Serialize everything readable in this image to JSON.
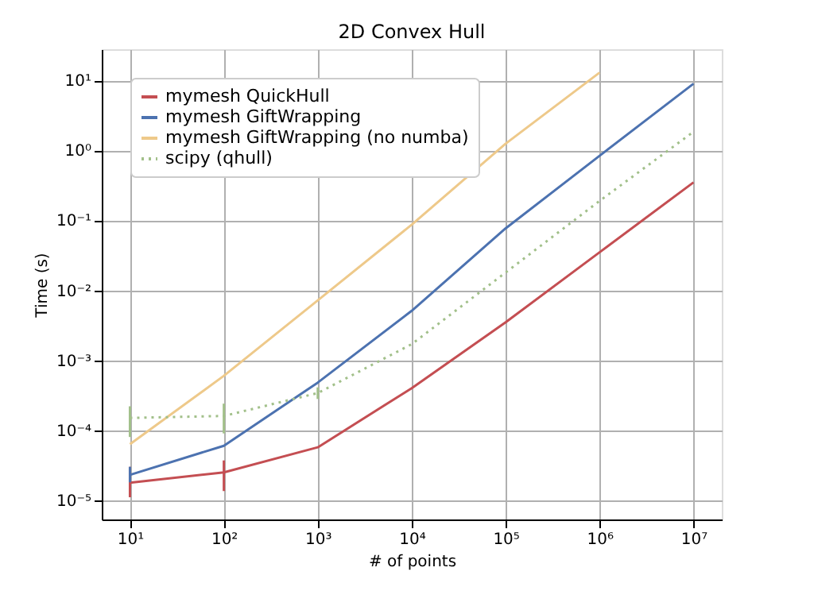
{
  "chart_data": {
    "type": "line",
    "title": "2D Convex Hull",
    "xlabel": "# of points",
    "ylabel": "Time (s)",
    "log": "xy",
    "grid": true,
    "legend": "top left",
    "x": [
      10,
      100,
      1000,
      10000,
      100000,
      1000000,
      10000000
    ],
    "xlim": [
      5.01,
      20000000
    ],
    "xticks": [
      {
        "value": 10,
        "label": "10¹"
      },
      {
        "value": 100,
        "label": "10²"
      },
      {
        "value": 1000,
        "label": "10³"
      },
      {
        "value": 10000,
        "label": "10⁴"
      },
      {
        "value": 100000,
        "label": "10⁵"
      },
      {
        "value": 1000000,
        "label": "10⁶"
      },
      {
        "value": 10000000,
        "label": "10⁷"
      }
    ],
    "ylim": [
      5.3e-06,
      28
    ],
    "yticks": [
      {
        "value": 1e-05,
        "label": "10⁻⁵"
      },
      {
        "value": 0.0001,
        "label": "10⁻⁴"
      },
      {
        "value": 0.001,
        "label": "10⁻³"
      },
      {
        "value": 0.01,
        "label": "10⁻²"
      },
      {
        "value": 0.1,
        "label": "10⁻¹"
      },
      {
        "value": 1,
        "label": "10⁰"
      },
      {
        "value": 10,
        "label": "10¹"
      }
    ],
    "series": [
      {
        "name": "mymesh QuickHull",
        "color": "#c44e52",
        "line_style": "solid",
        "values": [
          1.78e-05,
          2.5e-05,
          5.7e-05,
          0.0004,
          0.0035,
          0.035,
          0.35
        ],
        "errors": [
          [
            1.1e-05,
            3e-05
          ],
          [
            1.35e-05,
            3.7e-05
          ],
          null,
          null,
          null,
          null,
          null
        ]
      },
      {
        "name": "mymesh GiftWrapping",
        "color": "#4c72b0",
        "line_style": "solid",
        "values": [
          2.3e-05,
          6e-05,
          0.00048,
          0.0051,
          0.077,
          0.84,
          9
        ],
        "errors": [
          [
            1.8e-05,
            3e-05
          ],
          null,
          null,
          null,
          null,
          null,
          null
        ]
      },
      {
        "name": "mymesh GiftWrapping (no numba)",
        "color": "#eec98a",
        "line_style": "solid",
        "values": [
          6.3e-05,
          0.0006,
          0.0072,
          0.087,
          1.25,
          13,
          null
        ]
      },
      {
        "name": "scipy (qhull)",
        "color": "#a2c08a",
        "line_style": "dotted",
        "values": [
          0.00015,
          0.00016,
          0.00034,
          0.0017,
          0.018,
          0.19,
          1.85
        ],
        "errors": [
          [
            8e-05,
            0.00022
          ],
          [
            9e-05,
            0.00024
          ],
          [
            0.00028,
            0.00041
          ],
          null,
          null,
          null,
          null
        ]
      }
    ]
  }
}
